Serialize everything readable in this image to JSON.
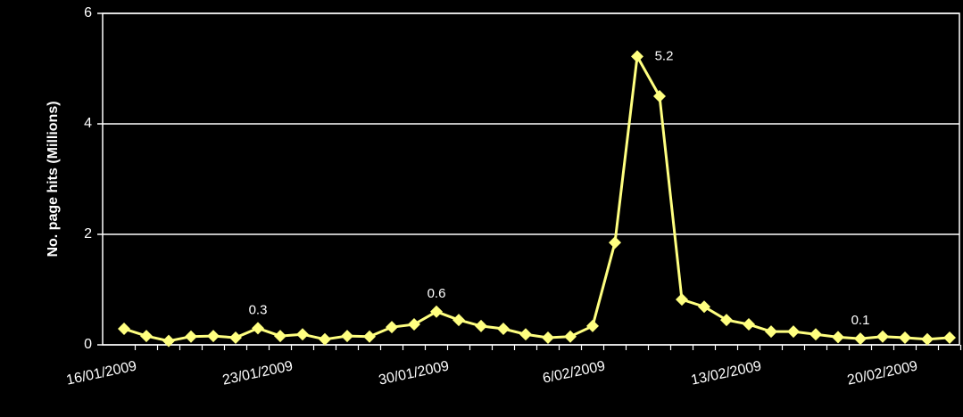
{
  "chart_data": {
    "type": "line",
    "y_label": "No. page hits (Millions)",
    "categories": [
      "16/01/2009",
      null,
      null,
      null,
      null,
      null,
      null,
      "23/01/2009",
      null,
      null,
      null,
      null,
      null,
      null,
      "30/01/2009",
      null,
      null,
      null,
      null,
      null,
      null,
      "6/02/2009",
      null,
      null,
      null,
      null,
      null,
      null,
      "13/02/2009",
      null,
      null,
      null,
      null,
      null,
      null,
      "20/02/2009",
      null,
      null
    ],
    "series": [
      {
        "color": "#ffff80",
        "values": [
          0.29,
          0.16,
          0.07,
          0.15,
          0.16,
          0.13,
          0.3,
          0.16,
          0.19,
          0.1,
          0.16,
          0.15,
          0.32,
          0.37,
          0.6,
          0.45,
          0.34,
          0.29,
          0.19,
          0.13,
          0.15,
          0.34,
          1.85,
          5.22,
          4.5,
          0.82,
          0.69,
          0.45,
          0.37,
          0.24,
          0.24,
          0.19,
          0.14,
          0.11,
          0.15,
          0.13,
          0.1,
          0.13
        ],
        "value_labels": [
          null,
          null,
          null,
          null,
          null,
          null,
          "0.3",
          null,
          null,
          null,
          null,
          null,
          null,
          null,
          "0.6",
          null,
          null,
          null,
          null,
          null,
          null,
          null,
          null,
          "5.2",
          null,
          null,
          null,
          null,
          null,
          null,
          null,
          null,
          null,
          "0.1",
          null,
          null,
          null,
          null
        ]
      }
    ],
    "ylim": [
      0,
      6
    ],
    "yticks": [
      0,
      2,
      4,
      6
    ],
    "grid": true
  }
}
